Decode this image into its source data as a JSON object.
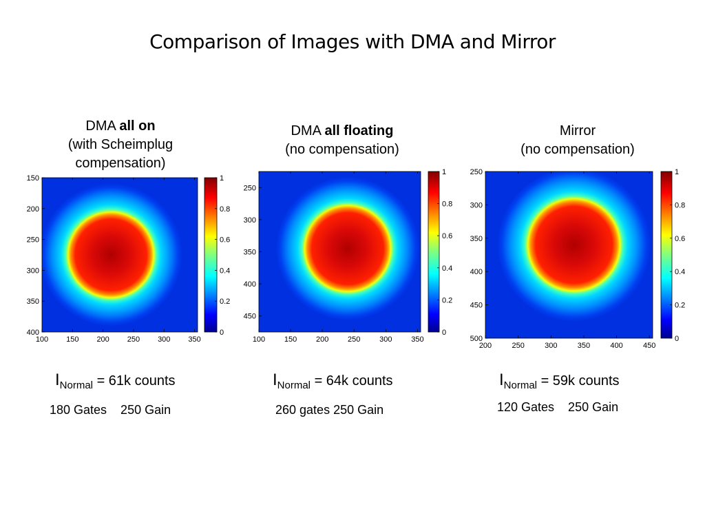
{
  "title": "Comparison of Images with DMA and  Mirror",
  "panels": [
    {
      "title_plain": "DMA ",
      "title_bold": "all on",
      "title_line2": "(with Scheimplug",
      "title_line3": "compensation)",
      "stat_I": "I",
      "stat_sub": "Normal",
      "stat_rest": " = 61k counts",
      "note": "180 Gates    250 Gain"
    },
    {
      "title_plain": "DMA ",
      "title_bold": "all floating",
      "title_line2": "(no compensation)",
      "title_line3": "",
      "stat_I": "I",
      "stat_sub": "Normal",
      "stat_rest": " = 64k counts",
      "note": "260 gates 250 Gain"
    },
    {
      "title_plain": "Mirror",
      "title_bold": "",
      "title_line2": "(no compensation)",
      "title_line3": "",
      "stat_I": "I",
      "stat_sub": "Normal",
      "stat_rest": " = 59k counts",
      "note": "120 Gates    250 Gain"
    }
  ],
  "chart_data": [
    {
      "type": "heatmap",
      "colormap": "jet",
      "x_ticks": [
        100,
        150,
        200,
        250,
        300,
        350
      ],
      "y_ticks": [
        150,
        200,
        250,
        300,
        350,
        400
      ],
      "xlim": [
        100,
        355
      ],
      "ylim": [
        150,
        400
      ],
      "colorbar_ticks": [
        0,
        0.2,
        0.4,
        0.6,
        0.8,
        1
      ],
      "spot_center": [
        213,
        275
      ],
      "spot_radius": 60
    },
    {
      "type": "heatmap",
      "colormap": "jet",
      "x_ticks": [
        100,
        150,
        200,
        250,
        300,
        350
      ],
      "y_ticks": [
        250,
        300,
        350,
        400,
        450
      ],
      "xlim": [
        100,
        355
      ],
      "ylim": [
        225,
        475
      ],
      "colorbar_ticks": [
        0,
        0.2,
        0.4,
        0.6,
        0.8,
        1
      ],
      "spot_center": [
        240,
        345
      ],
      "spot_radius": 58
    },
    {
      "type": "heatmap",
      "colormap": "jet",
      "x_ticks": [
        200,
        250,
        300,
        350,
        400,
        450
      ],
      "y_ticks": [
        250,
        300,
        350,
        400,
        450,
        500
      ],
      "xlim": [
        200,
        455
      ],
      "ylim": [
        250,
        500
      ],
      "colorbar_ticks": [
        0,
        0.2,
        0.4,
        0.6,
        0.8,
        1
      ],
      "spot_center": [
        335,
        360
      ],
      "spot_radius": 60
    }
  ]
}
